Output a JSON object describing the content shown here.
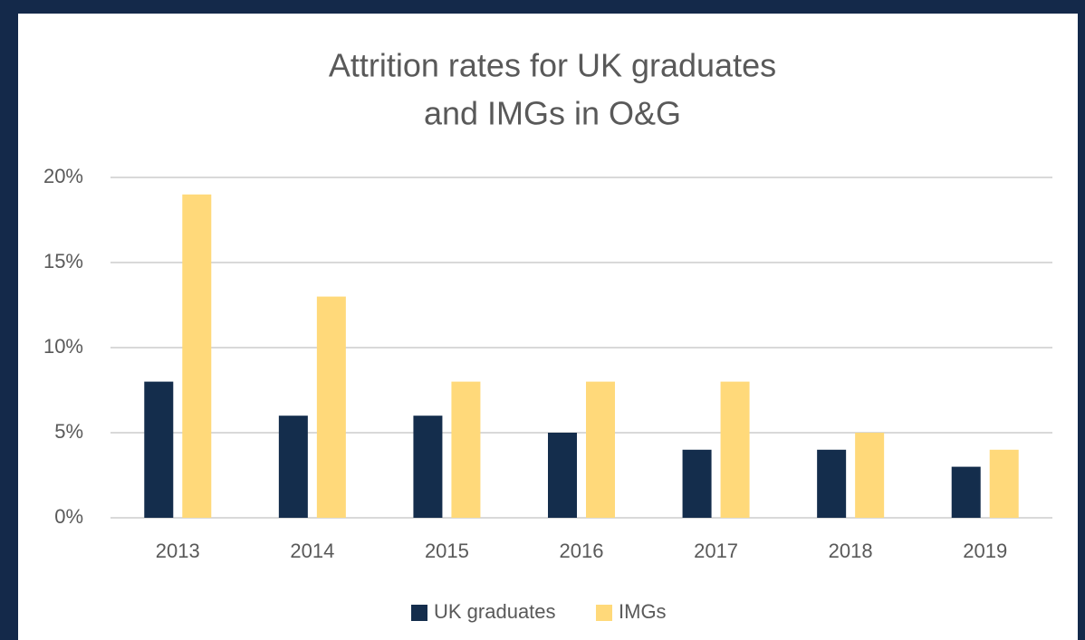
{
  "chart_data": {
    "type": "bar",
    "title": [
      "Attrition rates for UK graduates",
      "and IMGs in O&G"
    ],
    "categories": [
      "2013",
      "2014",
      "2015",
      "2016",
      "2017",
      "2018",
      "2019"
    ],
    "series": [
      {
        "name": "UK graduates",
        "color": "#142d4c",
        "values": [
          8,
          6,
          6,
          5,
          4,
          4,
          3
        ]
      },
      {
        "name": "IMGs",
        "color": "#ffd97a",
        "values": [
          19,
          13,
          8,
          8,
          8,
          5,
          4
        ]
      }
    ],
    "ylim": [
      0,
      20
    ],
    "yticks": [
      {
        "value": 0,
        "label": "0%"
      },
      {
        "value": 5,
        "label": "5%"
      },
      {
        "value": 10,
        "label": "10%"
      },
      {
        "value": 15,
        "label": "15%"
      },
      {
        "value": 20,
        "label": "20%"
      }
    ],
    "grid": true,
    "legend": "bottom"
  }
}
